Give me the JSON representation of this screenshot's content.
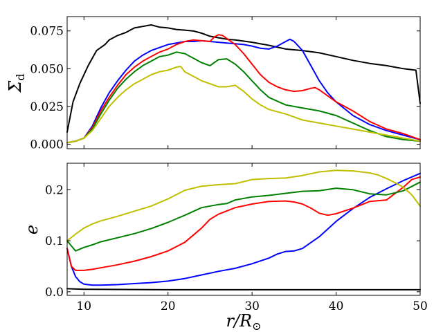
{
  "chart_data": [
    {
      "type": "line",
      "panel": "top",
      "xlabel": "",
      "ylabel": "Σ_d",
      "ylabel_main": "Σ",
      "ylabel_sub": "d",
      "xlim": [
        8,
        50
      ],
      "ylim": [
        -0.003,
        0.0845
      ],
      "xticks": [
        10,
        20,
        30,
        40,
        50
      ],
      "yticks": [
        0.0,
        0.025,
        0.05,
        0.075
      ],
      "ytick_labels": [
        "0.000",
        "0.025",
        "0.050",
        "0.075"
      ],
      "series": [
        {
          "name": "black",
          "color": "#000000",
          "x": [
            8,
            8.7,
            9.5,
            10.5,
            11.5,
            12.5,
            13,
            14,
            15,
            16,
            17,
            18,
            19,
            20,
            21,
            22,
            23,
            24,
            25,
            26,
            27,
            28,
            30,
            32,
            34,
            36,
            38,
            40,
            42,
            44,
            46,
            48,
            49.5,
            50
          ],
          "y": [
            0.008,
            0.028,
            0.04,
            0.052,
            0.062,
            0.066,
            0.069,
            0.072,
            0.074,
            0.077,
            0.078,
            0.079,
            0.0775,
            0.077,
            0.076,
            0.0755,
            0.075,
            0.0735,
            0.0715,
            0.0705,
            0.0695,
            0.069,
            0.0675,
            0.0655,
            0.063,
            0.062,
            0.0605,
            0.058,
            0.0555,
            0.0535,
            0.052,
            0.05,
            0.049,
            0.027
          ]
        },
        {
          "name": "blue",
          "color": "#0000ff",
          "x": [
            8,
            9,
            10,
            11,
            12,
            13,
            14,
            15,
            16,
            17,
            18,
            19,
            20,
            21,
            22,
            23,
            24,
            25,
            26,
            27,
            28,
            29,
            30,
            31,
            32,
            33,
            34,
            34.5,
            35,
            36,
            37,
            38,
            39,
            40,
            42,
            44,
            46,
            48,
            50
          ],
          "y": [
            0.001,
            0.002,
            0.004,
            0.012,
            0.024,
            0.034,
            0.042,
            0.049,
            0.055,
            0.059,
            0.062,
            0.064,
            0.066,
            0.067,
            0.068,
            0.068,
            0.0685,
            0.068,
            0.0675,
            0.067,
            0.0665,
            0.066,
            0.065,
            0.0635,
            0.063,
            0.065,
            0.068,
            0.0695,
            0.068,
            0.062,
            0.052,
            0.042,
            0.034,
            0.028,
            0.019,
            0.013,
            0.009,
            0.006,
            0.003
          ]
        },
        {
          "name": "red",
          "color": "#ff0000",
          "x": [
            8,
            9,
            10,
            11,
            12,
            13,
            14,
            15,
            16,
            17,
            18,
            19,
            20,
            21,
            22,
            23,
            24,
            25,
            25.5,
            26,
            26.5,
            27,
            28,
            29,
            30,
            31,
            32,
            33,
            34,
            35,
            36,
            37,
            37.5,
            38,
            39,
            40,
            42,
            44,
            46,
            48,
            50
          ],
          "y": [
            0.001,
            0.002,
            0.004,
            0.011,
            0.022,
            0.031,
            0.039,
            0.046,
            0.051,
            0.055,
            0.058,
            0.061,
            0.063,
            0.066,
            0.068,
            0.069,
            0.0685,
            0.068,
            0.071,
            0.0725,
            0.072,
            0.07,
            0.066,
            0.06,
            0.053,
            0.046,
            0.041,
            0.038,
            0.036,
            0.035,
            0.0355,
            0.037,
            0.0375,
            0.036,
            0.032,
            0.028,
            0.022,
            0.015,
            0.01,
            0.007,
            0.003
          ]
        },
        {
          "name": "green",
          "color": "#008000",
          "x": [
            8,
            9,
            10,
            11,
            12,
            13,
            14,
            15,
            16,
            17,
            18,
            19,
            20,
            21,
            22,
            23,
            24,
            25,
            26,
            27,
            28,
            29,
            30,
            31,
            32,
            34,
            36,
            38,
            40,
            42,
            44,
            46,
            48,
            50
          ],
          "y": [
            0.001,
            0.002,
            0.004,
            0.01,
            0.02,
            0.029,
            0.037,
            0.043,
            0.048,
            0.052,
            0.055,
            0.058,
            0.059,
            0.061,
            0.06,
            0.057,
            0.054,
            0.052,
            0.056,
            0.0565,
            0.053,
            0.048,
            0.042,
            0.036,
            0.031,
            0.026,
            0.024,
            0.022,
            0.019,
            0.014,
            0.009,
            0.005,
            0.003,
            0.002
          ]
        },
        {
          "name": "yellow",
          "color": "#bfbf00",
          "x": [
            8,
            9,
            10,
            11,
            12,
            13,
            14,
            15,
            16,
            17,
            18,
            19,
            20,
            21,
            21.5,
            22,
            23,
            24,
            25,
            26,
            27,
            28,
            29,
            30,
            31,
            32,
            34,
            36,
            38,
            40,
            42,
            44,
            46,
            48,
            50
          ],
          "y": [
            0.001,
            0.002,
            0.004,
            0.009,
            0.017,
            0.025,
            0.031,
            0.036,
            0.04,
            0.043,
            0.046,
            0.048,
            0.049,
            0.051,
            0.0515,
            0.048,
            0.045,
            0.042,
            0.04,
            0.038,
            0.038,
            0.039,
            0.035,
            0.03,
            0.026,
            0.023,
            0.02,
            0.016,
            0.014,
            0.012,
            0.01,
            0.008,
            0.006,
            0.004,
            0.002
          ]
        }
      ]
    },
    {
      "type": "line",
      "panel": "bottom",
      "xlabel": "r/R⊙",
      "xlabel_main": "r/R",
      "xlabel_sub": "⊙",
      "ylabel": "e",
      "xlim": [
        8,
        50
      ],
      "ylim": [
        -0.007,
        0.252
      ],
      "xticks": [
        10,
        20,
        30,
        40,
        50
      ],
      "xtick_labels": [
        "10",
        "20",
        "30",
        "40",
        "50"
      ],
      "yticks": [
        0.0,
        0.1,
        0.2
      ],
      "ytick_labels": [
        "0.0",
        "0.1",
        "0.2"
      ],
      "series": [
        {
          "name": "black",
          "color": "#000000",
          "x": [
            8,
            10,
            20,
            30,
            40,
            50
          ],
          "y": [
            0.006,
            0.005,
            0.004,
            0.004,
            0.004,
            0.004
          ]
        },
        {
          "name": "blue",
          "color": "#0000ff",
          "x": [
            8,
            8.5,
            9,
            9.5,
            10,
            11,
            12,
            14,
            16,
            18,
            20,
            22,
            24,
            26,
            28,
            30,
            32,
            33,
            34,
            35,
            36,
            38,
            40,
            42,
            44,
            46,
            48,
            50
          ],
          "y": [
            0.085,
            0.05,
            0.03,
            0.02,
            0.015,
            0.013,
            0.013,
            0.014,
            0.016,
            0.018,
            0.021,
            0.026,
            0.033,
            0.04,
            0.046,
            0.055,
            0.066,
            0.074,
            0.079,
            0.08,
            0.085,
            0.108,
            0.138,
            0.163,
            0.185,
            0.202,
            0.218,
            0.232
          ]
        },
        {
          "name": "red",
          "color": "#ff0000",
          "x": [
            8,
            8.5,
            9,
            10,
            11,
            12,
            14,
            16,
            18,
            20,
            22,
            24,
            25,
            26,
            28,
            30,
            32,
            34,
            35,
            36,
            37,
            38,
            39,
            40,
            42,
            44,
            46,
            48,
            49,
            50
          ],
          "y": [
            0.085,
            0.05,
            0.042,
            0.042,
            0.044,
            0.047,
            0.053,
            0.06,
            0.069,
            0.08,
            0.097,
            0.125,
            0.142,
            0.152,
            0.165,
            0.172,
            0.177,
            0.178,
            0.176,
            0.172,
            0.164,
            0.154,
            0.15,
            0.153,
            0.164,
            0.177,
            0.18,
            0.205,
            0.22,
            0.225
          ]
        },
        {
          "name": "green",
          "color": "#008000",
          "x": [
            8,
            9,
            10,
            11,
            12,
            14,
            16,
            18,
            20,
            22,
            24,
            26,
            27,
            28,
            30,
            32,
            34,
            36,
            38,
            40,
            42,
            44,
            46,
            48,
            50
          ],
          "y": [
            0.1,
            0.08,
            0.087,
            0.092,
            0.098,
            0.106,
            0.114,
            0.124,
            0.136,
            0.15,
            0.165,
            0.171,
            0.173,
            0.18,
            0.186,
            0.189,
            0.193,
            0.197,
            0.198,
            0.203,
            0.2,
            0.192,
            0.19,
            0.198,
            0.215
          ]
        },
        {
          "name": "yellow",
          "color": "#bfbf00",
          "x": [
            8,
            9,
            10,
            11,
            12,
            14,
            16,
            18,
            20,
            22,
            24,
            26,
            28,
            30,
            32,
            34,
            36,
            38,
            40,
            42,
            44,
            45,
            46,
            47,
            48,
            49,
            50
          ],
          "y": [
            0.1,
            0.113,
            0.125,
            0.133,
            0.139,
            0.148,
            0.158,
            0.168,
            0.182,
            0.199,
            0.207,
            0.21,
            0.212,
            0.22,
            0.222,
            0.223,
            0.228,
            0.235,
            0.238,
            0.237,
            0.233,
            0.229,
            0.222,
            0.214,
            0.205,
            0.19,
            0.168
          ]
        }
      ]
    }
  ]
}
